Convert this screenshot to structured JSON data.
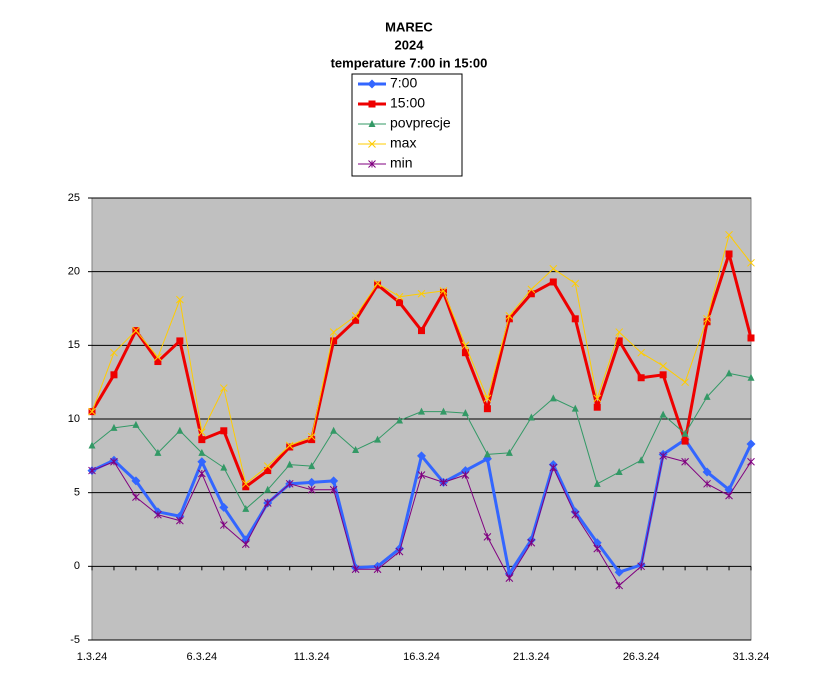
{
  "chart_data": {
    "type": "line",
    "title_lines": [
      "MAREC",
      "2024",
      "temperature 7:00 in 15:00"
    ],
    "categories": [
      "1.3.24",
      null,
      null,
      null,
      null,
      "6.3.24",
      null,
      null,
      null,
      null,
      "11.3.24",
      null,
      null,
      null,
      null,
      "16.3.24",
      null,
      null,
      null,
      null,
      "21.3.24",
      null,
      null,
      null,
      null,
      "26.3.24",
      null,
      null,
      null,
      null,
      "31.3.24"
    ],
    "series": [
      {
        "name": "7:00",
        "color": "#3366ff",
        "marker": "diamond",
        "width": 3,
        "values": [
          6.5,
          7.2,
          5.8,
          3.7,
          3.4,
          7.1,
          4.0,
          1.8,
          4.3,
          5.6,
          5.7,
          5.8,
          -0.1,
          0.0,
          1.2,
          7.5,
          5.7,
          6.5,
          7.3,
          -0.5,
          1.8,
          6.9,
          3.7,
          1.6,
          -0.4,
          0.1,
          7.6,
          8.6,
          6.4,
          5.2,
          8.3
        ]
      },
      {
        "name": "15:00",
        "color": "#ee0000",
        "marker": "square",
        "width": 3,
        "values": [
          10.5,
          13.0,
          16.0,
          13.9,
          15.3,
          8.6,
          9.2,
          5.4,
          6.5,
          8.1,
          8.6,
          15.3,
          16.7,
          19.1,
          17.9,
          16.0,
          18.6,
          14.5,
          10.7,
          16.8,
          18.5,
          19.3,
          16.8,
          10.8,
          15.3,
          12.8,
          13.0,
          8.5,
          16.6,
          21.2,
          15.5
        ]
      },
      {
        "name": "povprecje",
        "color": "#339966",
        "marker": "triangle",
        "width": 1,
        "values": [
          8.2,
          9.4,
          9.6,
          7.7,
          9.2,
          7.7,
          6.7,
          3.9,
          5.2,
          6.9,
          6.8,
          9.2,
          7.9,
          8.6,
          9.9,
          10.5,
          10.5,
          10.4,
          7.6,
          7.7,
          10.1,
          11.4,
          10.7,
          5.6,
          6.4,
          7.2,
          10.3,
          9.0,
          11.5,
          13.1,
          12.8
        ]
      },
      {
        "name": "max",
        "color": "#ffcc00",
        "marker": "x",
        "width": 1,
        "values": [
          10.5,
          14.5,
          16.0,
          14.2,
          18.1,
          9.1,
          12.1,
          5.6,
          6.8,
          8.2,
          8.8,
          15.9,
          17.0,
          19.2,
          18.3,
          18.5,
          18.7,
          15.0,
          11.4,
          17.0,
          18.8,
          20.2,
          19.2,
          11.4,
          15.9,
          14.5,
          13.6,
          12.5,
          16.8,
          22.5,
          20.6
        ]
      },
      {
        "name": "min",
        "color": "#800080",
        "marker": "star",
        "width": 1,
        "values": [
          6.5,
          7.1,
          4.7,
          3.5,
          3.1,
          6.3,
          2.8,
          1.5,
          4.3,
          5.6,
          5.2,
          5.2,
          -0.2,
          -0.2,
          1.0,
          6.2,
          5.7,
          6.2,
          2.0,
          -0.8,
          1.6,
          6.7,
          3.5,
          1.2,
          -1.3,
          0.0,
          7.5,
          7.1,
          5.6,
          4.8,
          7.1
        ]
      }
    ],
    "ylim": [
      -5,
      25
    ],
    "yticks": [
      -5,
      0,
      5,
      10,
      15,
      20,
      25
    ],
    "grid": true,
    "plot_background": "#c0c0c0"
  }
}
